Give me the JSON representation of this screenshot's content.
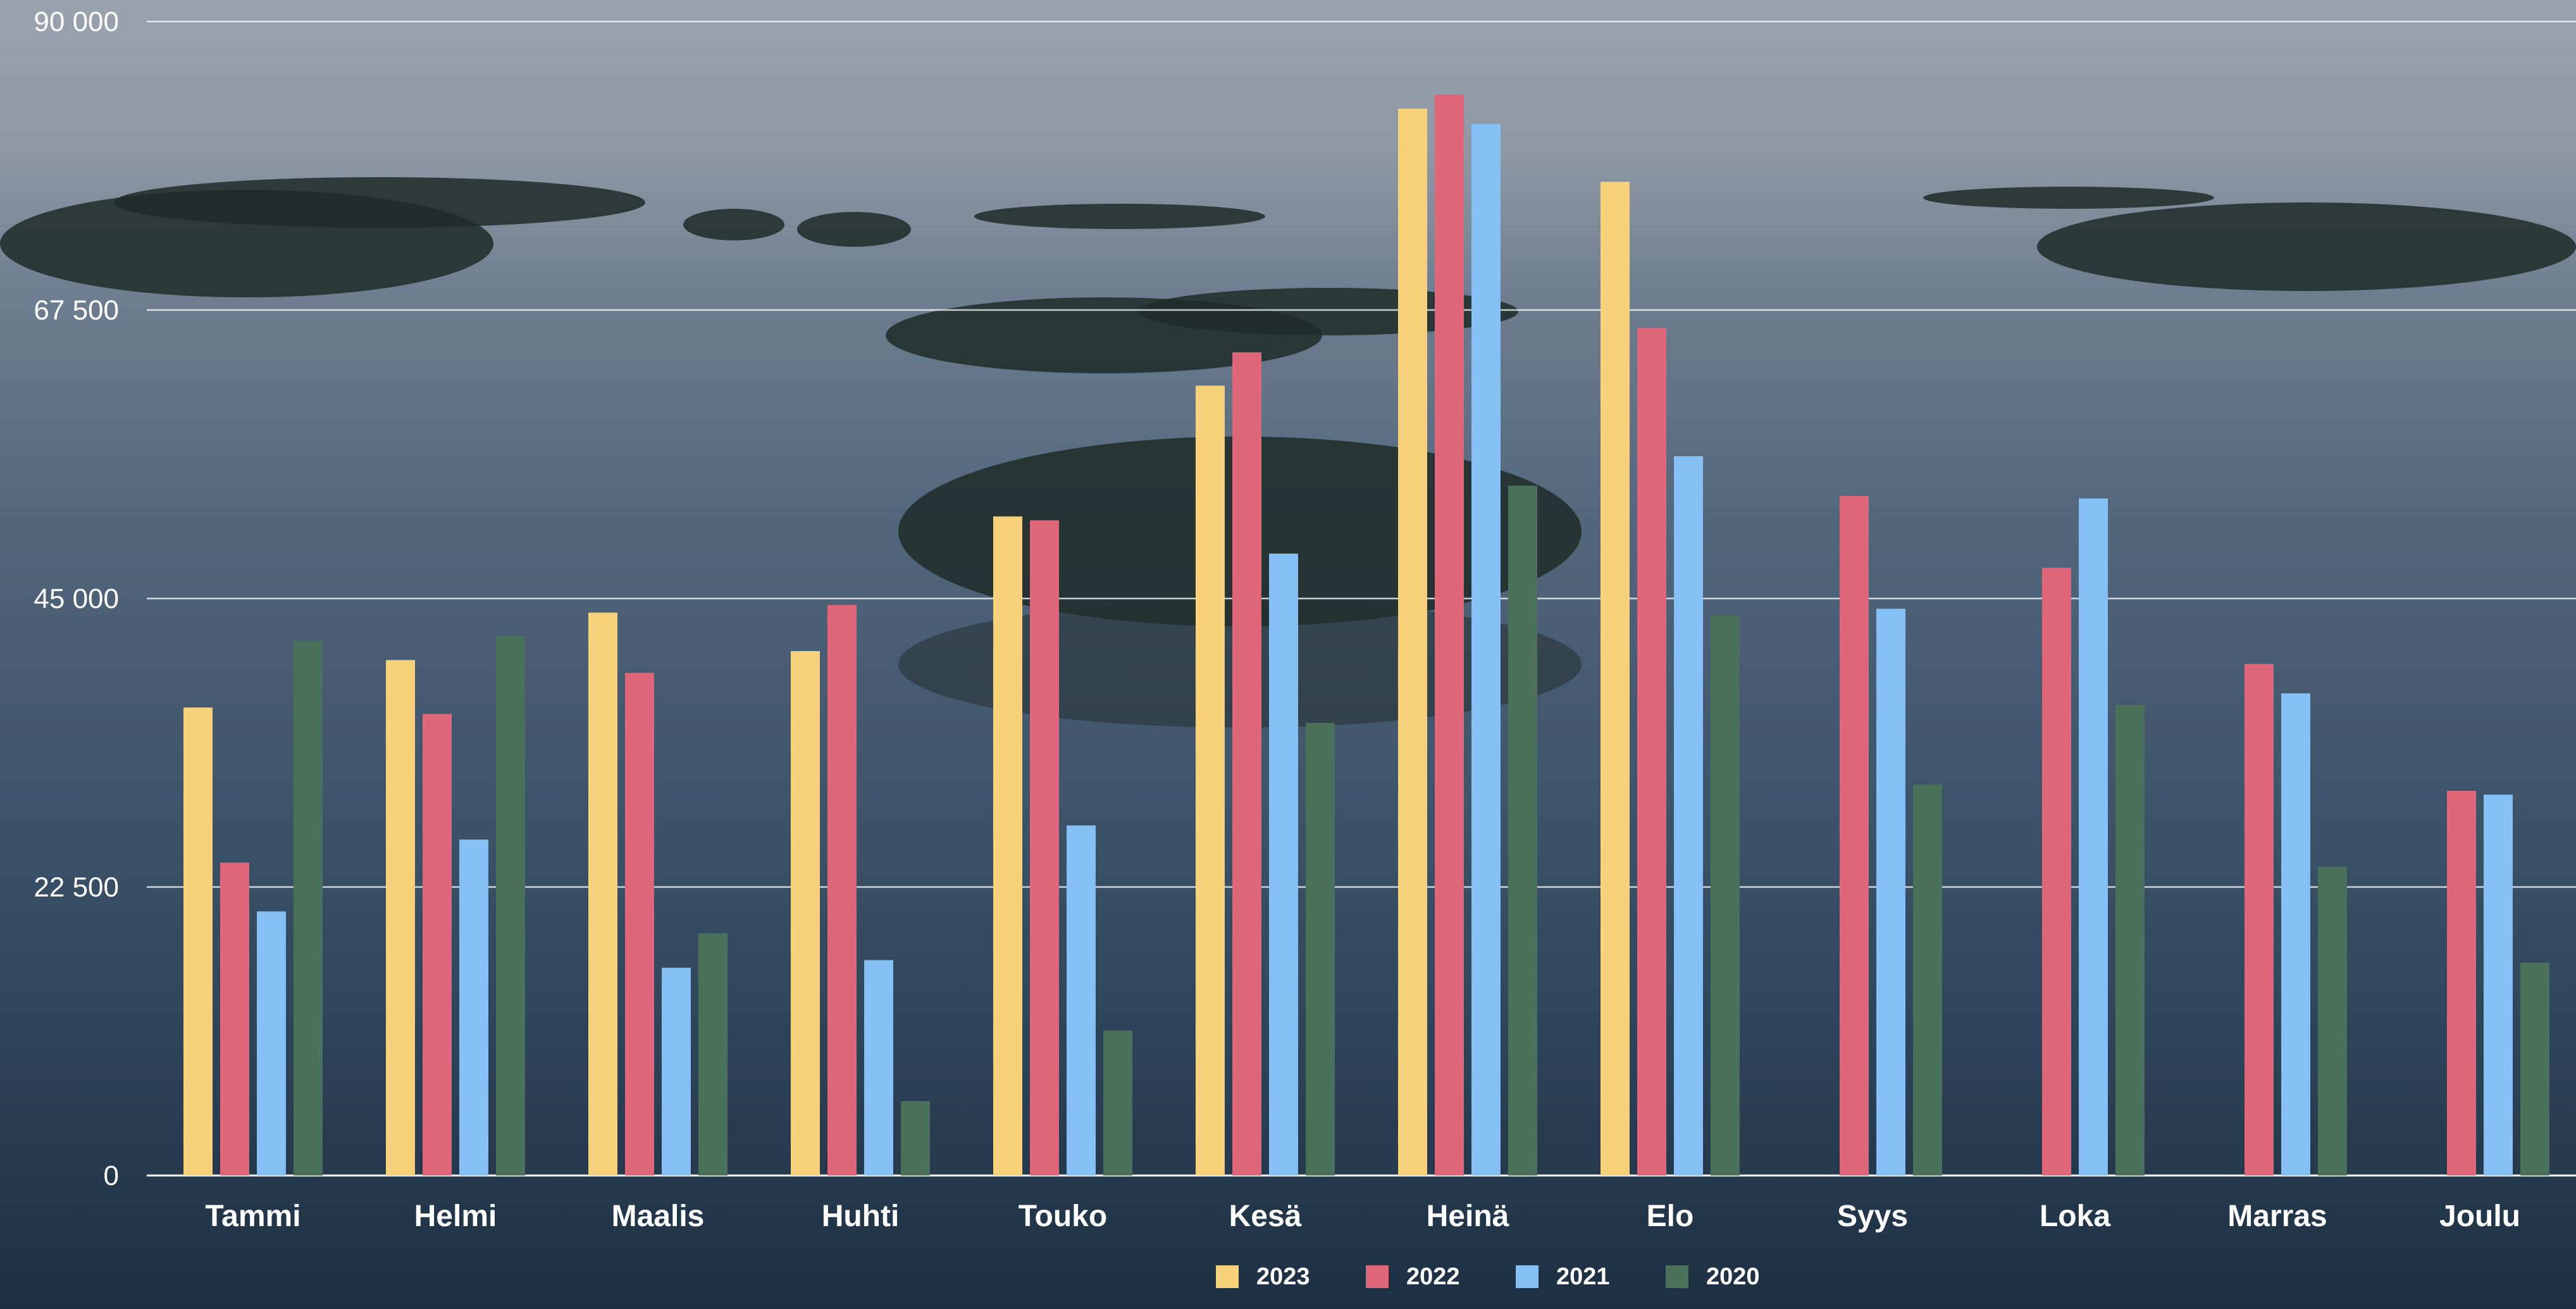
{
  "chart_data": {
    "type": "bar",
    "title": "",
    "xlabel": "",
    "ylabel": "",
    "categories": [
      "Tammi",
      "Helmi",
      "Maalis",
      "Huhti",
      "Touko",
      "Kesä",
      "Heinä",
      "Elo",
      "Syys",
      "Loka",
      "Marras",
      "Joulu"
    ],
    "series": [
      {
        "name": "2023",
        "color": "#f7d27a",
        "values": [
          36500,
          40200,
          43900,
          40900,
          51400,
          61600,
          83200,
          77500,
          null,
          null,
          null,
          null
        ]
      },
      {
        "name": "2022",
        "color": "#e0667a",
        "values": [
          24400,
          36000,
          39200,
          44500,
          51100,
          64200,
          84300,
          66100,
          53000,
          47400,
          39900,
          30000
        ]
      },
      {
        "name": "2021",
        "color": "#85c0f5",
        "values": [
          20600,
          26200,
          16200,
          16800,
          27300,
          48500,
          82000,
          56100,
          44200,
          52800,
          37600,
          29700
        ]
      },
      {
        "name": "2020",
        "color": "#4b715b",
        "values": [
          41700,
          42100,
          18900,
          5800,
          11300,
          35300,
          53800,
          43700,
          30500,
          36700,
          24100,
          16600
        ]
      }
    ],
    "yticks": [
      "0",
      "22 500",
      "45 000",
      "67 500",
      "90 000"
    ],
    "ylim": [
      0,
      90000
    ],
    "grid": true,
    "legend": "bottom-center"
  }
}
